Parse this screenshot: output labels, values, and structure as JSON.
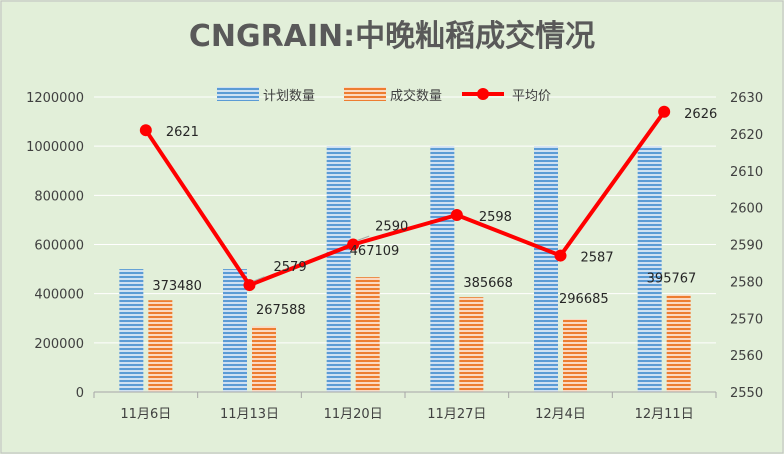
{
  "chart_data": {
    "type": "bar",
    "title": "CNGRAIN:中晚籼稻成交情况",
    "categories": [
      "11月6日",
      "11月13日",
      "11月20日",
      "11月27日",
      "12月4日",
      "12月11日"
    ],
    "series": [
      {
        "name": "计划数量",
        "kind": "bar",
        "axis": "left",
        "color": "#5b9bd5",
        "values": [
          500000,
          500000,
          1000000,
          1000000,
          1000000,
          1000000
        ]
      },
      {
        "name": "成交数量",
        "kind": "bar",
        "axis": "left",
        "color": "#ed7d31",
        "values": [
          373480,
          267588,
          467109,
          385668,
          296685,
          395767
        ],
        "data_labels": [
          "373480",
          "267588",
          "467109",
          "385668",
          "296685",
          "395767"
        ]
      },
      {
        "name": "平均价",
        "kind": "line",
        "axis": "right",
        "color": "#ff0000",
        "values": [
          2621,
          2579,
          2590,
          2598,
          2587,
          2626
        ],
        "data_labels": [
          "2621",
          "2579",
          "2590",
          "2598",
          "2587",
          "2626"
        ]
      }
    ],
    "y_left": {
      "min": 0,
      "max": 1200000,
      "step": 200000,
      "tick_labels": [
        "0",
        "200000",
        "400000",
        "600000",
        "800000",
        "1000000",
        "1200000"
      ]
    },
    "y_right": {
      "min": 2550,
      "max": 2630,
      "step": 10,
      "tick_labels": [
        "2550",
        "2560",
        "2570",
        "2580",
        "2590",
        "2600",
        "2610",
        "2620",
        "2630"
      ]
    },
    "legend_position": "top",
    "grid": true
  }
}
